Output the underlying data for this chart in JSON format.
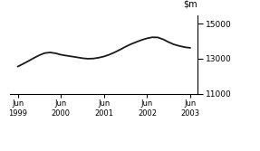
{
  "title": "",
  "xlim_start": 1999.33,
  "xlim_end": 2003.67,
  "ylim": [
    11000,
    15500
  ],
  "yticks": [
    11000,
    13000,
    15000
  ],
  "xtick_labels": [
    "Jun\n1999",
    "Jun\n2000",
    "Jun\n2001",
    "Jun\n2002",
    "Jun\n2003"
  ],
  "xtick_positions": [
    1999.5,
    2000.5,
    2001.5,
    2002.5,
    2003.5
  ],
  "line_color": "#1a1a1a",
  "line_width": 1.3,
  "background_color": "#ffffff",
  "x": [
    1999.5,
    1999.62,
    1999.75,
    1999.88,
    2000.0,
    2000.12,
    2000.25,
    2000.38,
    2000.5,
    2000.62,
    2000.75,
    2000.88,
    2001.0,
    2001.12,
    2001.25,
    2001.38,
    2001.5,
    2001.62,
    2001.75,
    2001.88,
    2002.0,
    2002.12,
    2002.25,
    2002.38,
    2002.5,
    2002.62,
    2002.75,
    2002.88,
    2003.0,
    2003.12,
    2003.25,
    2003.38,
    2003.5
  ],
  "y": [
    12550,
    12700,
    12870,
    13050,
    13200,
    13320,
    13360,
    13310,
    13230,
    13180,
    13130,
    13080,
    13030,
    13000,
    13010,
    13060,
    13130,
    13230,
    13370,
    13530,
    13690,
    13830,
    13960,
    14080,
    14170,
    14230,
    14220,
    14100,
    13950,
    13820,
    13730,
    13660,
    13620
  ]
}
